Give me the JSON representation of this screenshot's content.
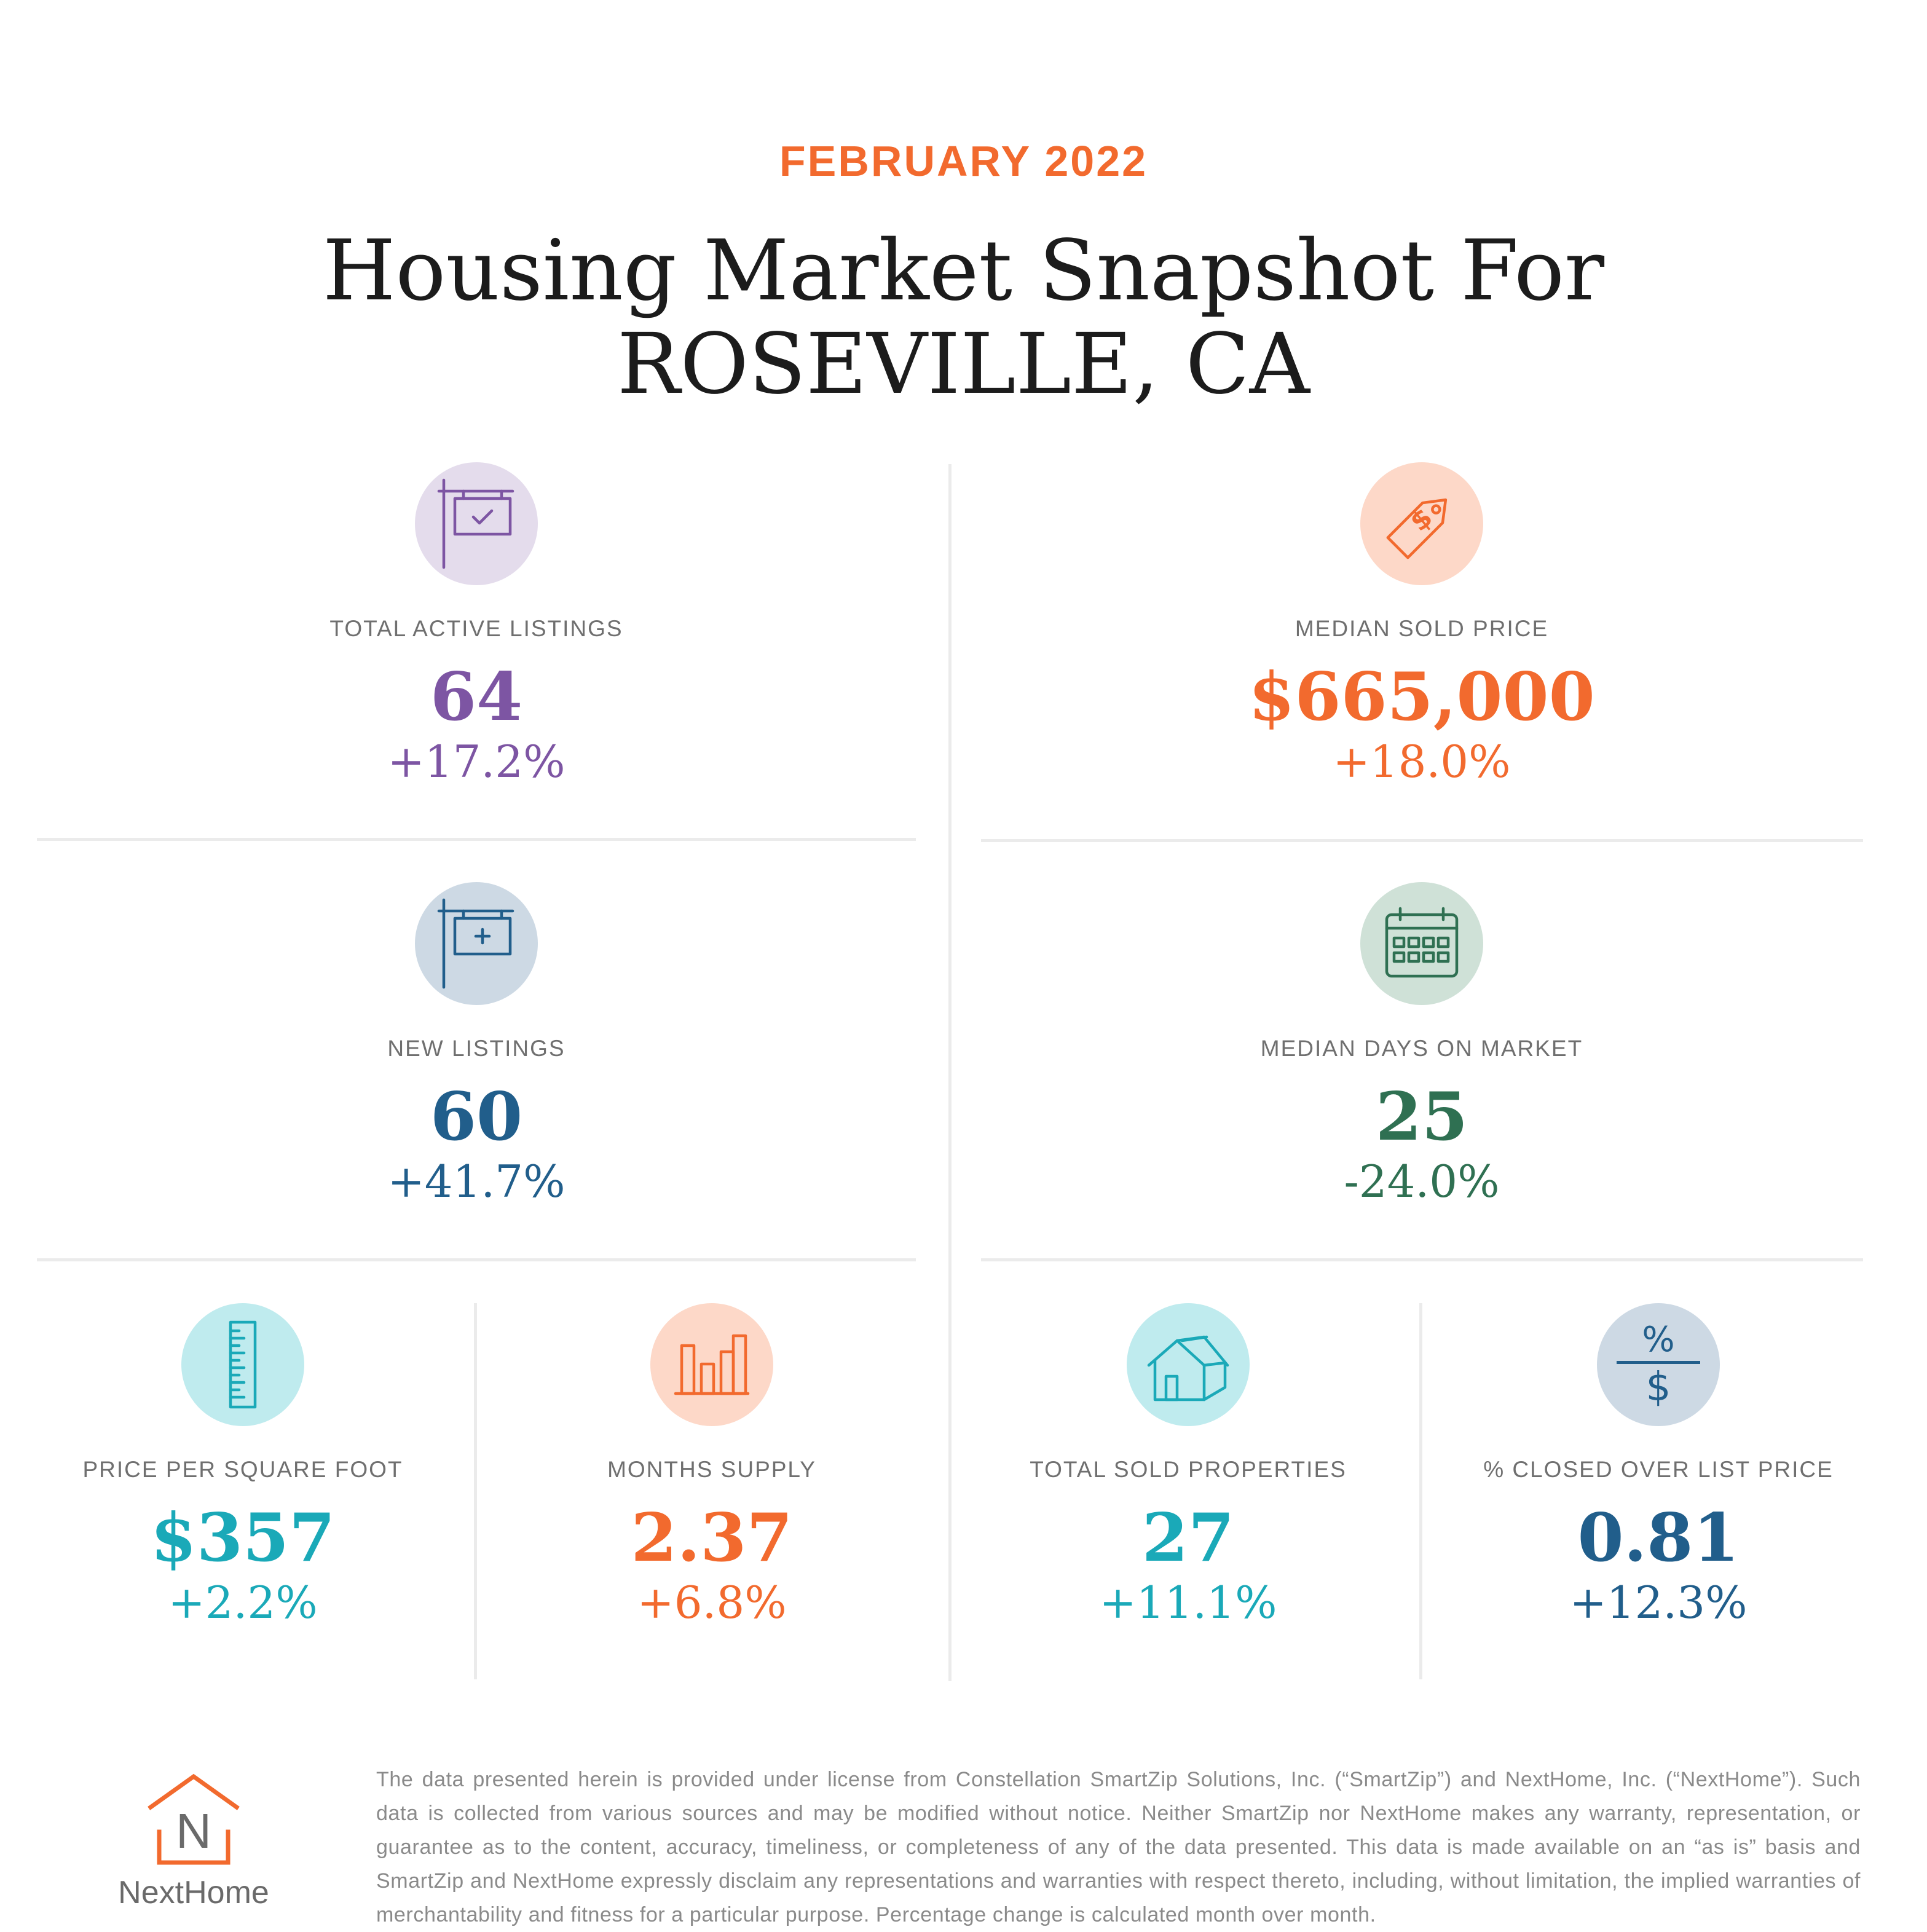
{
  "header": {
    "month": "FEBRUARY 2022",
    "title_line1": "Housing Market Snapshot For",
    "title_line2": "ROSEVILLE, CA"
  },
  "colors": {
    "orange": "#f26a2e",
    "purple": "#7d55a3",
    "blue": "#215e8b",
    "green": "#2f7052",
    "teal": "#1aa9b8"
  },
  "stats": {
    "active_listings": {
      "icon": "sign-check-icon",
      "label": "TOTAL ACTIVE LISTINGS",
      "value": "64",
      "change": "+17.2%"
    },
    "median_sold_price": {
      "icon": "price-tag-icon",
      "label": "MEDIAN SOLD PRICE",
      "value": "$665,000",
      "change": "+18.0%"
    },
    "new_listings": {
      "icon": "sign-plus-icon",
      "label": "NEW LISTINGS",
      "value": "60",
      "change": "+41.7%"
    },
    "median_days": {
      "icon": "calendar-icon",
      "label": "MEDIAN DAYS ON MARKET",
      "value": "25",
      "change": "-24.0%"
    },
    "price_per_sqft": {
      "icon": "ruler-icon",
      "label": "PRICE PER SQUARE FOOT",
      "value": "$357",
      "change": "+2.2%"
    },
    "months_supply": {
      "icon": "bar-chart-icon",
      "label": "MONTHS SUPPLY",
      "value": "2.37",
      "change": "+6.8%"
    },
    "total_sold": {
      "icon": "house-icon",
      "label": "TOTAL SOLD PROPERTIES",
      "value": "27",
      "change": "+11.1%"
    },
    "closed_over_list": {
      "icon": "percent-dollar-icon",
      "label": "% CLOSED OVER LIST PRICE",
      "value": "0.81",
      "change": "+12.3%",
      "icon_top": "%",
      "icon_bottom": "$"
    }
  },
  "footer": {
    "logo_letter": "N",
    "logo_word": "NextHome",
    "disclaimer": "The data presented herein is provided under license from Constellation SmartZip Solutions, Inc. (“SmartZip”) and NextHome, Inc. (“NextHome”). Such data is collected from various sources and may be modified without notice. Neither SmartZip nor NextHome makes any warranty, representation, or guarantee as to the content, accuracy, timeliness, or completeness of any of the data presented. This data is made available on an “as is” basis and SmartZip and NextHome expressly disclaim any representations and warranties with respect thereto, including, without limitation, the implied warranties of merchantability and fitness for a particular purpose. Percentage change is calculated month over month."
  }
}
